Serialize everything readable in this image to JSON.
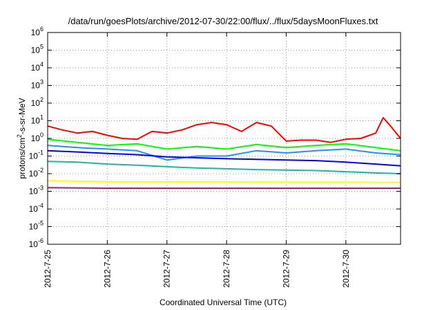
{
  "chart_data": {
    "type": "line",
    "title": "/data/run/goesPlots/archive/2012-07-30/22:00/flux/../flux/5daysMoonFluxes.txt",
    "xlabel": "Coordinated Universal Time (UTC)",
    "ylabel": {
      "base": "protons/cm",
      "sup": "2",
      "rest": "-s-sr-MeV"
    },
    "y_scale": "log",
    "ylim": [
      1e-06,
      1000000.0
    ],
    "xlim": [
      "2012-07-25",
      "2012-07-30T22:00"
    ],
    "grid": true,
    "y_ticks": [
      {
        "base": "10",
        "exp": "-6"
      },
      {
        "base": "10",
        "exp": "-5"
      },
      {
        "base": "10",
        "exp": "-4"
      },
      {
        "base": "10",
        "exp": "-3"
      },
      {
        "base": "10",
        "exp": "-2"
      },
      {
        "base": "10",
        "exp": "-1"
      },
      {
        "base": "10",
        "exp": "0"
      },
      {
        "base": "10",
        "exp": "1"
      },
      {
        "base": "10",
        "exp": "2"
      },
      {
        "base": "10",
        "exp": "3"
      },
      {
        "base": "10",
        "exp": "4"
      },
      {
        "base": "10",
        "exp": "5"
      },
      {
        "base": "10",
        "exp": "6"
      }
    ],
    "x_ticks": [
      "2012-7-25",
      "2012-7-26",
      "2012-7-27",
      "2012-7-28",
      "2012-7-29",
      "2012-7-30"
    ],
    "series": [
      {
        "color": "#ff0000",
        "x": [
          "2012-07-25T00:00",
          "2012-07-25T06:00",
          "2012-07-25T12:00",
          "2012-07-25T18:00",
          "2012-07-26T00:00",
          "2012-07-26T06:00",
          "2012-07-26T12:00",
          "2012-07-26T18:00",
          "2012-07-27T00:00",
          "2012-07-27T06:00",
          "2012-07-27T12:00",
          "2012-07-27T18:00",
          "2012-07-28T00:00",
          "2012-07-28T06:00",
          "2012-07-28T12:00",
          "2012-07-28T18:00",
          "2012-07-29T00:00",
          "2012-07-29T06:00",
          "2012-07-29T12:00",
          "2012-07-29T18:00",
          "2012-07-30T00:00",
          "2012-07-30T06:00",
          "2012-07-30T12:00",
          "2012-07-30T15:00",
          "2012-07-30T18:00",
          "2012-07-30T22:00"
        ],
        "y": [
          5,
          3,
          2,
          2.5,
          1.5,
          1,
          0.9,
          2.5,
          2,
          3,
          6,
          8,
          6,
          2.5,
          8,
          5,
          0.7,
          0.8,
          0.8,
          0.6,
          0.9,
          1,
          2,
          15,
          5,
          1
        ]
      },
      {
        "color": "#00ff00",
        "x": [
          "2012-07-25T00:00",
          "2012-07-25T12:00",
          "2012-07-26T00:00",
          "2012-07-26T12:00",
          "2012-07-27T00:00",
          "2012-07-27T12:00",
          "2012-07-28T00:00",
          "2012-07-28T12:00",
          "2012-07-29T00:00",
          "2012-07-29T12:00",
          "2012-07-30T00:00",
          "2012-07-30T12:00",
          "2012-07-30T22:00"
        ],
        "y": [
          0.9,
          0.6,
          0.4,
          0.5,
          0.25,
          0.35,
          0.25,
          0.45,
          0.3,
          0.4,
          0.5,
          0.3,
          0.2
        ]
      },
      {
        "color": "#1e90ff",
        "x": [
          "2012-07-25T00:00",
          "2012-07-25T12:00",
          "2012-07-26T00:00",
          "2012-07-26T12:00",
          "2012-07-27T00:00",
          "2012-07-27T12:00",
          "2012-07-28T00:00",
          "2012-07-28T12:00",
          "2012-07-29T00:00",
          "2012-07-29T12:00",
          "2012-07-30T00:00",
          "2012-07-30T12:00",
          "2012-07-30T22:00"
        ],
        "y": [
          0.4,
          0.3,
          0.25,
          0.2,
          0.06,
          0.1,
          0.1,
          0.2,
          0.15,
          0.2,
          0.25,
          0.15,
          0.12
        ]
      },
      {
        "color": "#0000ff",
        "x": [
          "2012-07-25T00:00",
          "2012-07-25T12:00",
          "2012-07-26T00:00",
          "2012-07-26T12:00",
          "2012-07-27T00:00",
          "2012-07-27T12:00",
          "2012-07-28T00:00",
          "2012-07-28T12:00",
          "2012-07-29T00:00",
          "2012-07-29T12:00",
          "2012-07-30T00:00",
          "2012-07-30T12:00",
          "2012-07-30T22:00"
        ],
        "y": [
          0.2,
          0.17,
          0.14,
          0.12,
          0.09,
          0.08,
          0.07,
          0.065,
          0.06,
          0.055,
          0.045,
          0.035,
          0.028
        ]
      },
      {
        "color": "#20b2aa",
        "x": [
          "2012-07-25T00:00",
          "2012-07-25T12:00",
          "2012-07-26T00:00",
          "2012-07-26T12:00",
          "2012-07-27T00:00",
          "2012-07-27T12:00",
          "2012-07-28T00:00",
          "2012-07-28T12:00",
          "2012-07-29T00:00",
          "2012-07-29T12:00",
          "2012-07-30T00:00",
          "2012-07-30T12:00",
          "2012-07-30T22:00"
        ],
        "y": [
          0.05,
          0.045,
          0.035,
          0.03,
          0.025,
          0.021,
          0.019,
          0.017,
          0.016,
          0.015,
          0.013,
          0.011,
          0.01
        ]
      },
      {
        "color": "#ffff00",
        "x": [
          "2012-07-25T00:00",
          "2012-07-26T00:00",
          "2012-07-27T00:00",
          "2012-07-28T00:00",
          "2012-07-29T00:00",
          "2012-07-30T00:00",
          "2012-07-30T22:00"
        ],
        "y": [
          0.004,
          0.0035,
          0.0035,
          0.0034,
          0.0033,
          0.0033,
          0.0032
        ]
      },
      {
        "color": "#8b2a6b",
        "x": [
          "2012-07-25T00:00",
          "2012-07-26T00:00",
          "2012-07-27T00:00",
          "2012-07-28T00:00",
          "2012-07-29T00:00",
          "2012-07-30T00:00",
          "2012-07-30T22:00"
        ],
        "y": [
          0.0016,
          0.0015,
          0.0015,
          0.0015,
          0.0015,
          0.0015,
          0.0015
        ]
      }
    ]
  }
}
